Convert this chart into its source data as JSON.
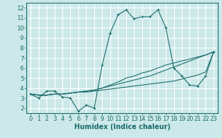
{
  "title": "",
  "xlabel": "Humidex (Indice chaleur)",
  "ylabel": "",
  "background_color": "#cce8e8",
  "grid_color": "#ffffff",
  "line_color": "#1a6b6b",
  "xlim": [
    -0.5,
    23.5
  ],
  "ylim": [
    1.5,
    12.5
  ],
  "xticks": [
    0,
    1,
    2,
    3,
    4,
    5,
    6,
    7,
    8,
    9,
    10,
    11,
    12,
    13,
    14,
    15,
    16,
    17,
    18,
    19,
    20,
    21,
    22,
    23
  ],
  "yticks": [
    2,
    3,
    4,
    5,
    6,
    7,
    8,
    9,
    10,
    11,
    12
  ],
  "series": [
    [
      3.4,
      3.0,
      3.7,
      3.7,
      3.1,
      3.0,
      1.7,
      2.3,
      2.0,
      6.3,
      9.5,
      11.3,
      11.8,
      10.9,
      11.1,
      11.1,
      11.8,
      10.0,
      6.0,
      5.2,
      4.3,
      4.2,
      5.2,
      7.6
    ],
    [
      3.4,
      3.3,
      3.3,
      3.4,
      3.4,
      3.5,
      3.6,
      3.6,
      3.7,
      3.8,
      3.9,
      4.0,
      4.1,
      4.2,
      4.3,
      4.4,
      4.5,
      4.6,
      4.7,
      4.9,
      5.1,
      5.3,
      5.6,
      7.6
    ],
    [
      3.4,
      3.3,
      3.3,
      3.4,
      3.4,
      3.5,
      3.6,
      3.7,
      3.8,
      4.0,
      4.2,
      4.4,
      4.6,
      4.8,
      5.0,
      5.2,
      5.5,
      5.8,
      6.1,
      6.4,
      6.7,
      7.0,
      7.3,
      7.6
    ],
    [
      3.4,
      3.3,
      3.3,
      3.4,
      3.4,
      3.5,
      3.6,
      3.7,
      3.8,
      4.0,
      4.3,
      4.6,
      5.0,
      5.2,
      5.5,
      5.7,
      6.0,
      6.3,
      6.5,
      6.7,
      6.9,
      7.1,
      7.3,
      7.6
    ]
  ],
  "xlabel_fontsize": 7,
  "tick_fontsize": 6
}
